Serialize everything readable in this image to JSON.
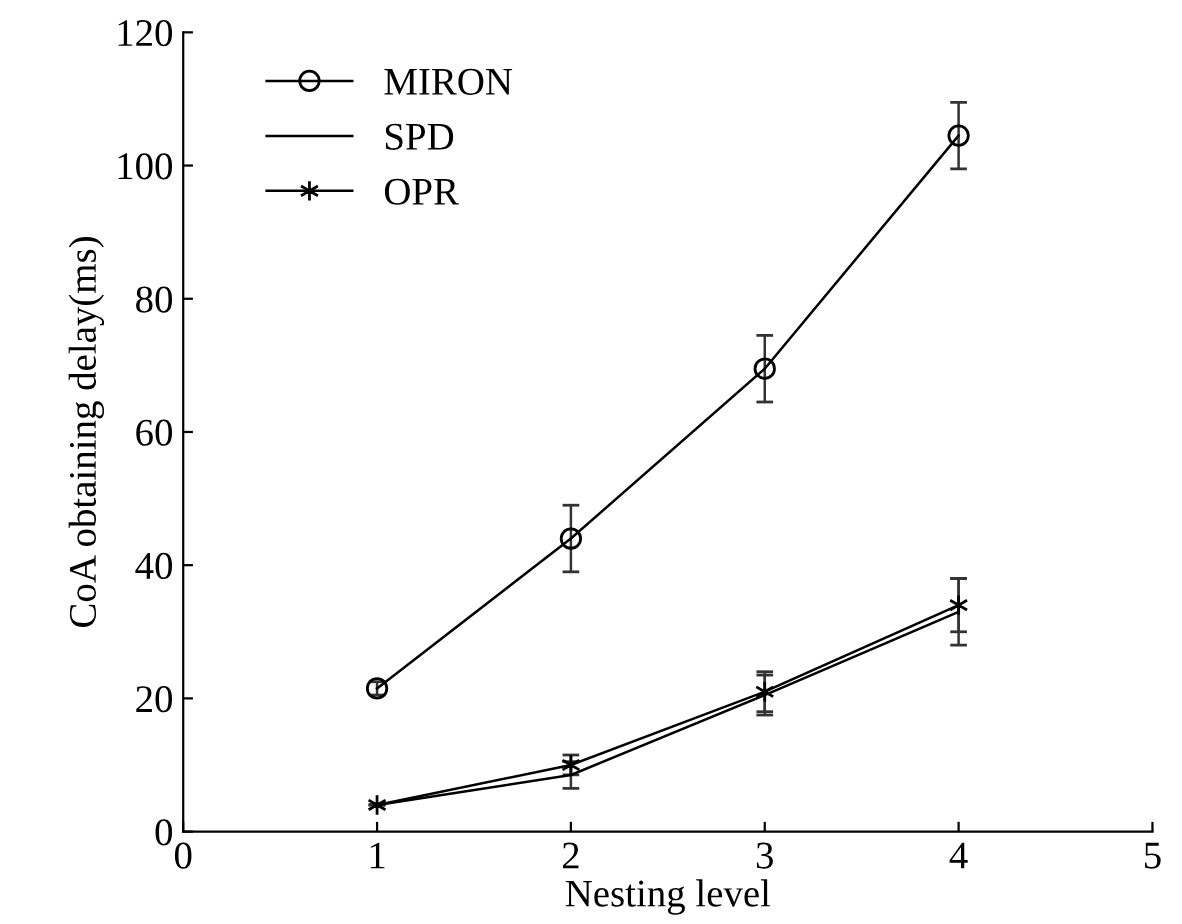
{
  "chart_data": {
    "type": "line",
    "xlabel": "Nesting level",
    "ylabel": "CoA obtaining delay(ms)",
    "x": [
      1,
      2,
      3,
      4
    ],
    "series": [
      {
        "name": "MIRON",
        "color": "#000000",
        "marker": "circle",
        "values": [
          21.5,
          44,
          69.5,
          104.5
        ],
        "errors": [
          1,
          5,
          5,
          5
        ]
      },
      {
        "name": "SPD",
        "color": "#000000",
        "marker": "none",
        "values": [
          4,
          8.5,
          20.5,
          33
        ],
        "errors": [
          null,
          2,
          3,
          5
        ]
      },
      {
        "name": "OPR",
        "color": "#000000",
        "marker": "cross",
        "values": [
          4,
          10,
          21,
          34
        ],
        "errors": [
          null,
          1.5,
          3,
          4
        ]
      }
    ],
    "xlim": [
      0,
      5
    ],
    "xticks": [
      0,
      1,
      2,
      3,
      4,
      5
    ],
    "ylim": [
      0,
      120
    ],
    "yticks": [
      0,
      20,
      40,
      60,
      80,
      100,
      120
    ],
    "grid": false,
    "legend": "top left",
    "line_style": "solid"
  }
}
